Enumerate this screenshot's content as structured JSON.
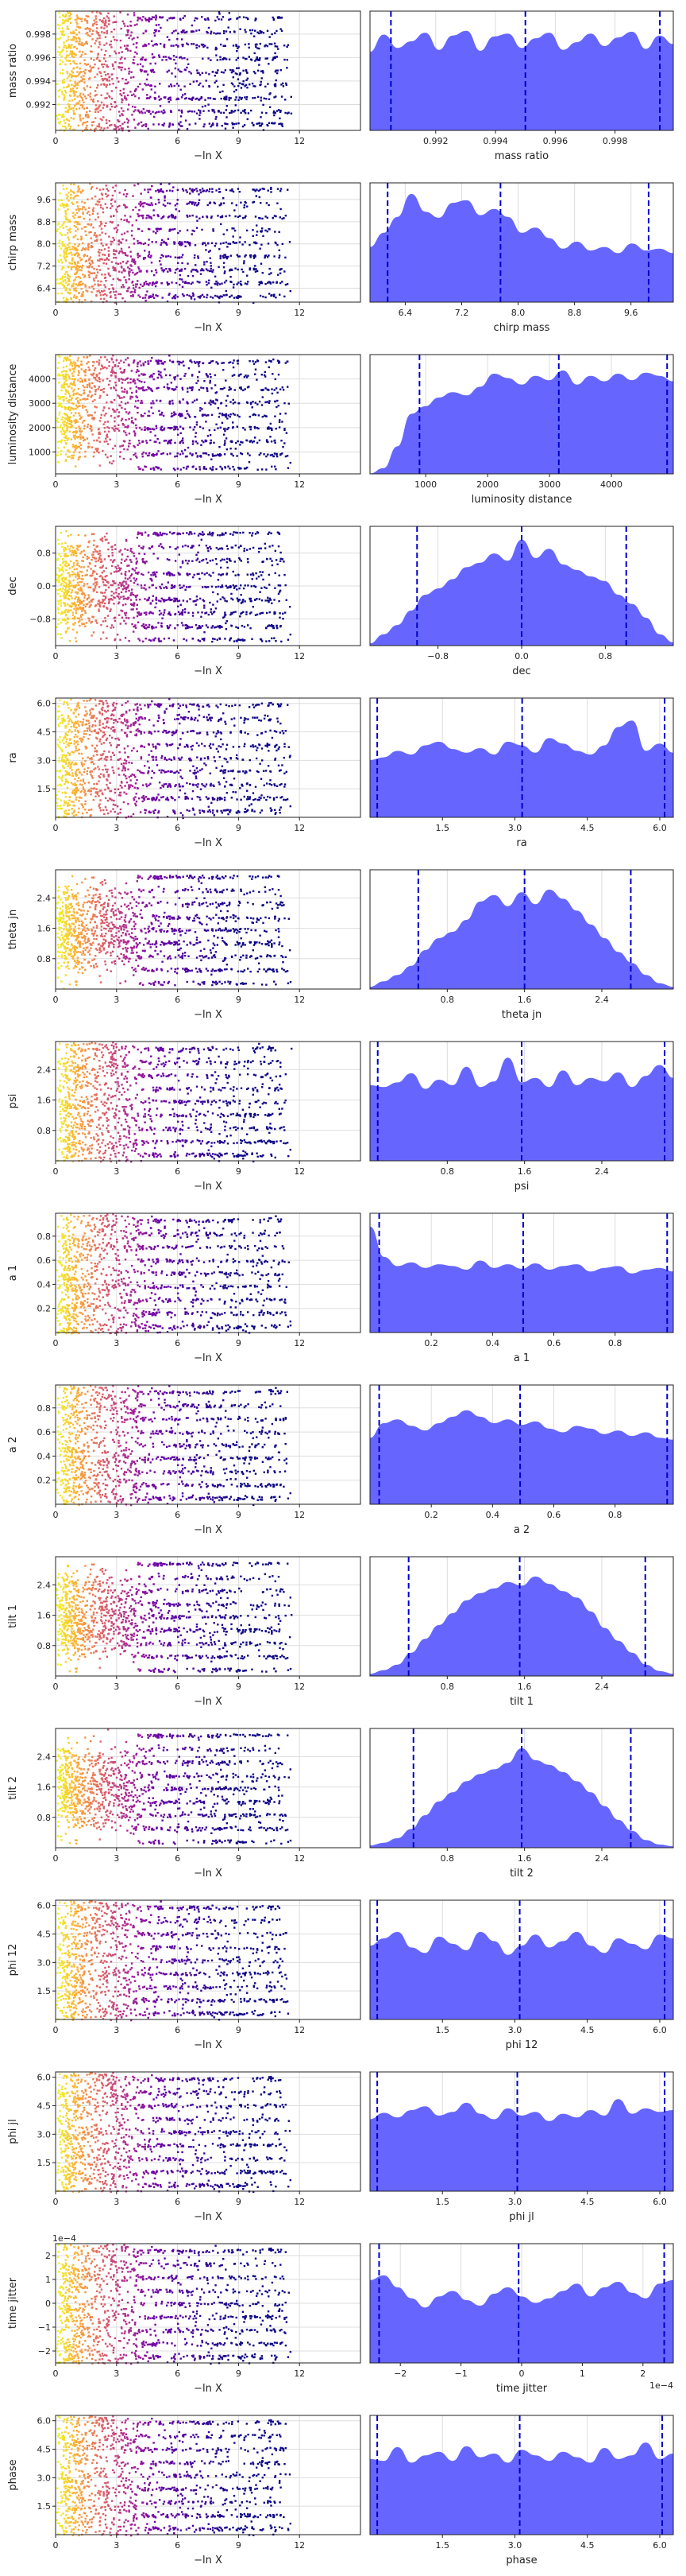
{
  "figure": {
    "left_xlabel": "−ln X",
    "chart_type": "trace-and-posterior-grid",
    "trace_x_ticks": [
      "0",
      "3",
      "6",
      "9",
      "12"
    ],
    "trace_xlim": [
      0,
      15
    ],
    "scatter_colormap": "plasma",
    "kde_fill_color": "#6666ff",
    "quantile_line_color": "#0000cc",
    "grid": true
  },
  "chart_data": [
    {
      "type": "scatter+area",
      "name": "mass ratio",
      "ylabel": "mass ratio",
      "xlabel": "mass ratio",
      "range": [
        0.9898,
        0.99995
      ],
      "ticks": [
        0.992,
        0.994,
        0.996,
        0.998
      ],
      "tick_labels": [
        "0.992",
        "0.994",
        "0.996",
        "0.998"
      ],
      "ylim_right": [
        0,
        1.25
      ],
      "y_offset": "",
      "quantiles": [
        0.9905,
        0.995,
        0.9995
      ],
      "density": [
        0.82,
        1.0,
        0.86,
        0.93,
        1.02,
        0.84,
        0.99,
        1.04,
        0.83,
        0.98,
        1.01,
        0.86,
        0.96,
        1.02,
        0.84,
        0.92,
        1.01,
        0.88,
        0.97,
        1.03,
        0.85,
        0.99,
        0.9
      ]
    },
    {
      "type": "scatter+area",
      "name": "chirp mass",
      "ylabel": "chirp mass",
      "xlabel": "chirp mass",
      "range": [
        5.9,
        10.2
      ],
      "ticks": [
        6.4,
        7.2,
        8.0,
        8.8,
        9.6
      ],
      "tick_labels": [
        "6.4",
        "7.2",
        "8.0",
        "8.8",
        "9.6"
      ],
      "ylim_right": [
        0,
        1.35
      ],
      "y_offset": "",
      "quantiles": [
        6.15,
        7.75,
        9.85
      ],
      "density": [
        0.62,
        0.78,
        0.96,
        1.22,
        1.02,
        0.95,
        1.12,
        1.15,
        0.98,
        1.05,
        0.96,
        0.78,
        0.84,
        0.72,
        0.6,
        0.68,
        0.58,
        0.62,
        0.55,
        0.66,
        0.58,
        0.6,
        0.55
      ]
    },
    {
      "type": "scatter+area",
      "name": "luminosity distance",
      "ylabel": "luminosity distance",
      "xlabel": "luminosity distance",
      "range": [
        100,
        5000
      ],
      "ticks": [
        1000,
        2000,
        3000,
        4000
      ],
      "tick_labels": [
        "1000",
        "2000",
        "3000",
        "4000"
      ],
      "ylim_right": [
        0,
        1.1
      ],
      "y_offset": "",
      "quantiles": [
        900,
        3150,
        4900
      ],
      "density": [
        0.0,
        0.05,
        0.25,
        0.55,
        0.62,
        0.7,
        0.75,
        0.72,
        0.8,
        0.92,
        0.88,
        0.82,
        0.9,
        0.86,
        0.95,
        0.82,
        0.9,
        0.85,
        0.92,
        0.86,
        0.93,
        0.9,
        0.85
      ]
    },
    {
      "type": "scatter+area",
      "name": "dec",
      "ylabel": "dec",
      "xlabel": "dec",
      "range": [
        -1.45,
        1.45
      ],
      "ticks": [
        -0.8,
        0.0,
        0.8
      ],
      "tick_labels": [
        "−0.8",
        "0.0",
        "0.8"
      ],
      "ylim_right": [
        0,
        1.3
      ],
      "y_offset": "",
      "quantiles": [
        -1.0,
        0.0,
        1.0
      ],
      "density": [
        0.02,
        0.12,
        0.22,
        0.38,
        0.55,
        0.62,
        0.72,
        0.85,
        0.9,
        1.0,
        0.92,
        1.15,
        0.95,
        1.05,
        0.88,
        0.82,
        0.75,
        0.7,
        0.55,
        0.45,
        0.3,
        0.12,
        0.03
      ]
    },
    {
      "type": "scatter+area",
      "name": "ra",
      "ylabel": "ra",
      "xlabel": "ra",
      "range": [
        0.0,
        6.28
      ],
      "ticks": [
        1.5,
        3.0,
        4.5,
        6.0
      ],
      "tick_labels": [
        "1.5",
        "3.0",
        "4.5",
        "6.0"
      ],
      "ylim_right": [
        0,
        1.3
      ],
      "y_offset": "",
      "quantiles": [
        0.15,
        3.15,
        6.1
      ],
      "density": [
        0.62,
        0.65,
        0.72,
        0.68,
        0.78,
        0.82,
        0.74,
        0.7,
        0.75,
        0.68,
        0.82,
        0.78,
        0.7,
        0.86,
        0.8,
        0.72,
        0.68,
        0.78,
        0.98,
        1.05,
        0.72,
        0.8,
        0.7
      ]
    },
    {
      "type": "scatter+area",
      "name": "theta jn",
      "ylabel": "theta jn",
      "xlabel": "theta jn",
      "range": [
        0.0,
        3.14
      ],
      "ticks": [
        0.8,
        1.6,
        2.4
      ],
      "tick_labels": [
        "0.8",
        "1.6",
        "2.4"
      ],
      "ylim_right": [
        0,
        1.3
      ],
      "y_offset": "",
      "quantiles": [
        0.5,
        1.6,
        2.7
      ],
      "density": [
        0.02,
        0.08,
        0.15,
        0.25,
        0.42,
        0.55,
        0.62,
        0.75,
        0.95,
        1.02,
        0.9,
        1.05,
        0.92,
        1.08,
        0.98,
        0.85,
        0.7,
        0.55,
        0.4,
        0.28,
        0.15,
        0.06,
        0.02
      ]
    },
    {
      "type": "scatter+area",
      "name": "psi",
      "ylabel": "psi",
      "xlabel": "psi",
      "range": [
        0.0,
        3.14
      ],
      "ticks": [
        0.8,
        1.6,
        2.4
      ],
      "tick_labels": [
        "0.8",
        "1.6",
        "2.4"
      ],
      "ylim_right": [
        0,
        1.3
      ],
      "y_offset": "",
      "quantiles": [
        0.08,
        1.57,
        3.05
      ],
      "density": [
        0.82,
        0.8,
        0.85,
        0.95,
        0.78,
        0.88,
        0.82,
        1.02,
        0.8,
        0.86,
        1.12,
        0.85,
        0.9,
        0.8,
        0.98,
        0.82,
        0.9,
        0.86,
        0.96,
        0.8,
        0.92,
        1.04,
        0.9
      ]
    },
    {
      "type": "scatter+area",
      "name": "a 1",
      "ylabel": "a 1",
      "xlabel": "a 1",
      "range": [
        0.0,
        0.99
      ],
      "ticks": [
        0.2,
        0.4,
        0.6,
        0.8
      ],
      "tick_labels": [
        "0.2",
        "0.4",
        "0.6",
        "0.8"
      ],
      "ylim_right": [
        0,
        1.3
      ],
      "y_offset": "",
      "quantiles": [
        0.03,
        0.5,
        0.97
      ],
      "density": [
        1.15,
        0.82,
        0.72,
        0.76,
        0.7,
        0.74,
        0.72,
        0.68,
        0.78,
        0.7,
        0.74,
        0.69,
        0.75,
        0.68,
        0.72,
        0.74,
        0.66,
        0.7,
        0.72,
        0.64,
        0.68,
        0.7,
        0.66
      ]
    },
    {
      "type": "scatter+area",
      "name": "a 2",
      "ylabel": "a 2",
      "xlabel": "a 2",
      "range": [
        0.0,
        0.99
      ],
      "ticks": [
        0.2,
        0.4,
        0.6,
        0.8
      ],
      "tick_labels": [
        "0.2",
        "0.4",
        "0.6",
        "0.8"
      ],
      "ylim_right": [
        0,
        1.3
      ],
      "y_offset": "",
      "quantiles": [
        0.03,
        0.49,
        0.97
      ],
      "density": [
        0.72,
        0.88,
        0.92,
        0.85,
        0.8,
        0.88,
        0.95,
        1.02,
        0.95,
        0.88,
        0.92,
        0.86,
        0.9,
        0.82,
        0.78,
        0.85,
        0.82,
        0.76,
        0.8,
        0.74,
        0.78,
        0.72,
        0.7
      ]
    },
    {
      "type": "scatter+area",
      "name": "tilt 1",
      "ylabel": "tilt 1",
      "xlabel": "tilt 1",
      "range": [
        0.0,
        3.14
      ],
      "ticks": [
        0.8,
        1.6,
        2.4
      ],
      "tick_labels": [
        "0.8",
        "1.6",
        "2.4"
      ],
      "ylim_right": [
        0,
        1.3
      ],
      "y_offset": "",
      "quantiles": [
        0.4,
        1.55,
        2.85
      ],
      "density": [
        0.02,
        0.06,
        0.12,
        0.25,
        0.4,
        0.55,
        0.68,
        0.82,
        0.9,
        0.95,
        1.02,
        0.98,
        1.08,
        1.0,
        0.92,
        0.85,
        0.7,
        0.52,
        0.38,
        0.25,
        0.12,
        0.05,
        0.02
      ]
    },
    {
      "type": "scatter+area",
      "name": "tilt 2",
      "ylabel": "tilt 2",
      "xlabel": "tilt 2",
      "range": [
        0.0,
        3.14
      ],
      "ticks": [
        0.8,
        1.6,
        2.4
      ],
      "tick_labels": [
        "0.8",
        "1.6",
        "2.4"
      ],
      "ylim_right": [
        0,
        1.3
      ],
      "y_offset": "",
      "quantiles": [
        0.45,
        1.57,
        2.7
      ],
      "density": [
        0.02,
        0.05,
        0.1,
        0.2,
        0.35,
        0.5,
        0.6,
        0.72,
        0.8,
        0.85,
        0.92,
        1.08,
        0.95,
        0.9,
        0.82,
        0.72,
        0.6,
        0.45,
        0.3,
        0.18,
        0.08,
        0.03,
        0.01
      ]
    },
    {
      "type": "scatter+area",
      "name": "phi 12",
      "ylabel": "phi 12",
      "xlabel": "phi 12",
      "range": [
        0.0,
        6.28
      ],
      "ticks": [
        1.5,
        3.0,
        4.5,
        6.0
      ],
      "tick_labels": [
        "1.5",
        "3.0",
        "4.5",
        "6.0"
      ],
      "ylim_right": [
        0,
        1.3
      ],
      "y_offset": "",
      "quantiles": [
        0.15,
        3.1,
        6.1
      ],
      "density": [
        0.8,
        0.88,
        0.95,
        0.78,
        0.72,
        0.9,
        0.82,
        0.75,
        0.95,
        0.85,
        0.7,
        0.8,
        0.92,
        0.78,
        0.85,
        0.95,
        0.8,
        0.72,
        0.88,
        0.82,
        0.76,
        0.92,
        0.88
      ]
    },
    {
      "type": "scatter+area",
      "name": "phi jl",
      "ylabel": "phi jl",
      "xlabel": "phi jl",
      "range": [
        0.0,
        6.28
      ],
      "ticks": [
        1.5,
        3.0,
        4.5,
        6.0
      ],
      "tick_labels": [
        "1.5",
        "3.0",
        "4.5",
        "6.0"
      ],
      "ylim_right": [
        0,
        1.3
      ],
      "y_offset": "",
      "quantiles": [
        0.15,
        3.05,
        6.1
      ],
      "density": [
        0.78,
        0.85,
        0.8,
        0.88,
        0.92,
        0.82,
        0.86,
        0.96,
        0.84,
        0.78,
        0.9,
        0.82,
        0.86,
        0.76,
        0.84,
        0.8,
        0.88,
        0.82,
        1.0,
        0.84,
        0.9,
        0.86,
        0.88
      ]
    },
    {
      "type": "scatter+area",
      "name": "time jitter",
      "ylabel": "time jitter",
      "xlabel": "time jitter",
      "range": [
        -2.5,
        2.5
      ],
      "ticks": [
        -2,
        -1,
        0,
        1,
        2
      ],
      "tick_labels": [
        "−2",
        "−1",
        "0",
        "1",
        "2"
      ],
      "ylim_right": [
        0,
        1.3
      ],
      "y_offset": "1e−4",
      "quantiles": [
        -2.35,
        -0.05,
        2.35
      ],
      "density": [
        0.9,
        0.95,
        0.82,
        0.7,
        0.6,
        0.72,
        0.78,
        0.68,
        0.62,
        0.75,
        0.82,
        0.72,
        0.65,
        0.7,
        0.78,
        0.86,
        0.72,
        0.82,
        0.88,
        0.76,
        0.7,
        0.86,
        0.9
      ]
    },
    {
      "type": "scatter+area",
      "name": "phase",
      "ylabel": "phase",
      "xlabel": "phase",
      "range": [
        0.0,
        6.28
      ],
      "ticks": [
        1.5,
        3.0,
        4.5,
        6.0
      ],
      "tick_labels": [
        "1.5",
        "3.0",
        "4.5",
        "6.0"
      ],
      "ylim_right": [
        0,
        1.3
      ],
      "y_offset": "",
      "quantiles": [
        0.15,
        3.1,
        6.05
      ],
      "density": [
        0.82,
        0.8,
        0.95,
        0.78,
        0.86,
        0.9,
        0.8,
        0.96,
        0.84,
        0.88,
        0.78,
        0.92,
        0.86,
        0.8,
        0.9,
        0.84,
        0.78,
        0.94,
        0.82,
        0.86,
        1.0,
        0.82,
        0.88
      ]
    }
  ]
}
